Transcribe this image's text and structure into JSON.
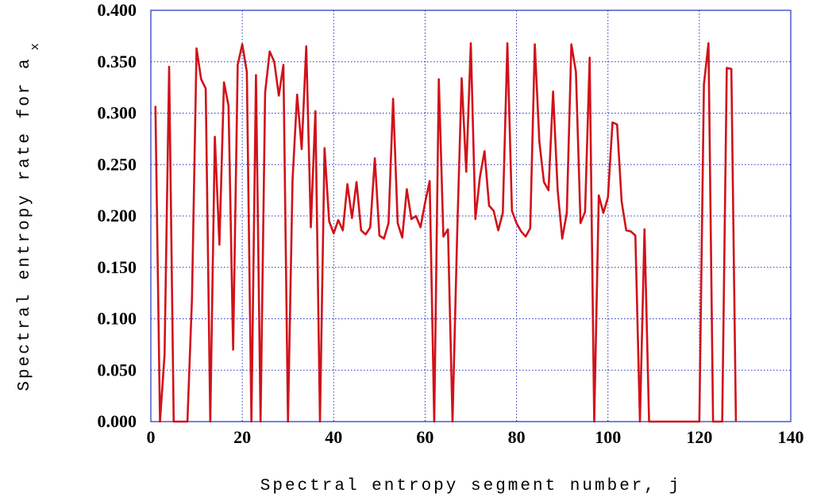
{
  "chart_data": {
    "type": "line",
    "xlabel": "Spectral entropy segment number, j",
    "ylabel": "Spectral entropy rate for a",
    "ylabel_subscript": "x",
    "xlim": [
      0,
      140
    ],
    "xticks": [
      0,
      20,
      40,
      60,
      80,
      100,
      120,
      140
    ],
    "ylim": [
      0,
      0.4
    ],
    "yticks": [
      {
        "value": 0,
        "label": "0.000"
      },
      {
        "value": 0.05,
        "label": "0.050"
      },
      {
        "value": 0.1,
        "label": "0.100"
      },
      {
        "value": 0.15,
        "label": "0.150"
      },
      {
        "value": 0.2,
        "label": "0.200"
      },
      {
        "value": 0.25,
        "label": "0.250"
      },
      {
        "value": 0.3,
        "label": "0.300"
      },
      {
        "value": 0.35,
        "label": "0.350"
      },
      {
        "value": 0.4,
        "label": "0.400"
      }
    ],
    "grid": true,
    "series": [
      {
        "color": "#d0121a",
        "x": [
          1,
          2,
          3,
          4,
          5,
          6,
          7,
          8,
          9,
          10,
          11,
          12,
          13,
          14,
          15,
          16,
          17,
          18,
          19,
          20,
          21,
          22,
          23,
          24,
          25,
          26,
          27,
          28,
          29,
          30,
          31,
          32,
          33,
          34,
          35,
          36,
          37,
          38,
          39,
          40,
          41,
          42,
          43,
          44,
          45,
          46,
          47,
          48,
          49,
          50,
          51,
          52,
          53,
          54,
          55,
          56,
          57,
          58,
          59,
          60,
          61,
          62,
          63,
          64,
          65,
          66,
          67,
          68,
          69,
          70,
          71,
          72,
          73,
          74,
          75,
          76,
          77,
          78,
          79,
          80,
          81,
          82,
          83,
          84,
          85,
          86,
          87,
          88,
          89,
          90,
          91,
          92,
          93,
          94,
          95,
          96,
          97,
          98,
          99,
          100,
          101,
          102,
          103,
          104,
          105,
          106,
          107,
          108,
          109,
          110,
          111,
          112,
          113,
          114,
          115,
          116,
          117,
          118,
          119,
          120,
          121,
          122,
          123,
          124,
          125,
          126,
          127,
          128
        ],
        "values": [
          0.307,
          0,
          0.065,
          0.345,
          0,
          0,
          0,
          0,
          0.12,
          0.363,
          0.333,
          0.324,
          0,
          0.277,
          0.172,
          0.33,
          0.307,
          0.07,
          0.347,
          0.367,
          0.34,
          0,
          0.337,
          0,
          0.32,
          0.36,
          0.35,
          0.317,
          0.347,
          0,
          0.235,
          0.318,
          0.265,
          0.365,
          0.189,
          0.302,
          0,
          0.266,
          0.195,
          0.183,
          0.196,
          0.186,
          0.231,
          0.198,
          0.233,
          0.186,
          0.182,
          0.189,
          0.256,
          0.181,
          0.178,
          0.193,
          0.314,
          0.193,
          0.179,
          0.226,
          0.197,
          0.2,
          0.189,
          0.213,
          0.234,
          0,
          0.333,
          0.18,
          0.187,
          0,
          0.18,
          0.334,
          0.243,
          0.368,
          0.197,
          0.238,
          0.263,
          0.21,
          0.205,
          0.186,
          0.203,
          0.368,
          0.205,
          0.193,
          0.185,
          0.18,
          0.188,
          0.367,
          0.272,
          0.233,
          0.225,
          0.321,
          0.225,
          0.178,
          0.203,
          0.367,
          0.34,
          0.193,
          0.204,
          0.354,
          0,
          0.22,
          0.203,
          0.218,
          0.291,
          0.289,
          0.214,
          0.186,
          0.185,
          0.181,
          0,
          0.187,
          0,
          0,
          0,
          0,
          0,
          0,
          0,
          0,
          0,
          0,
          0,
          0,
          0.328,
          0.368,
          0,
          0,
          0,
          0.344,
          0.343,
          0
        ]
      }
    ]
  }
}
